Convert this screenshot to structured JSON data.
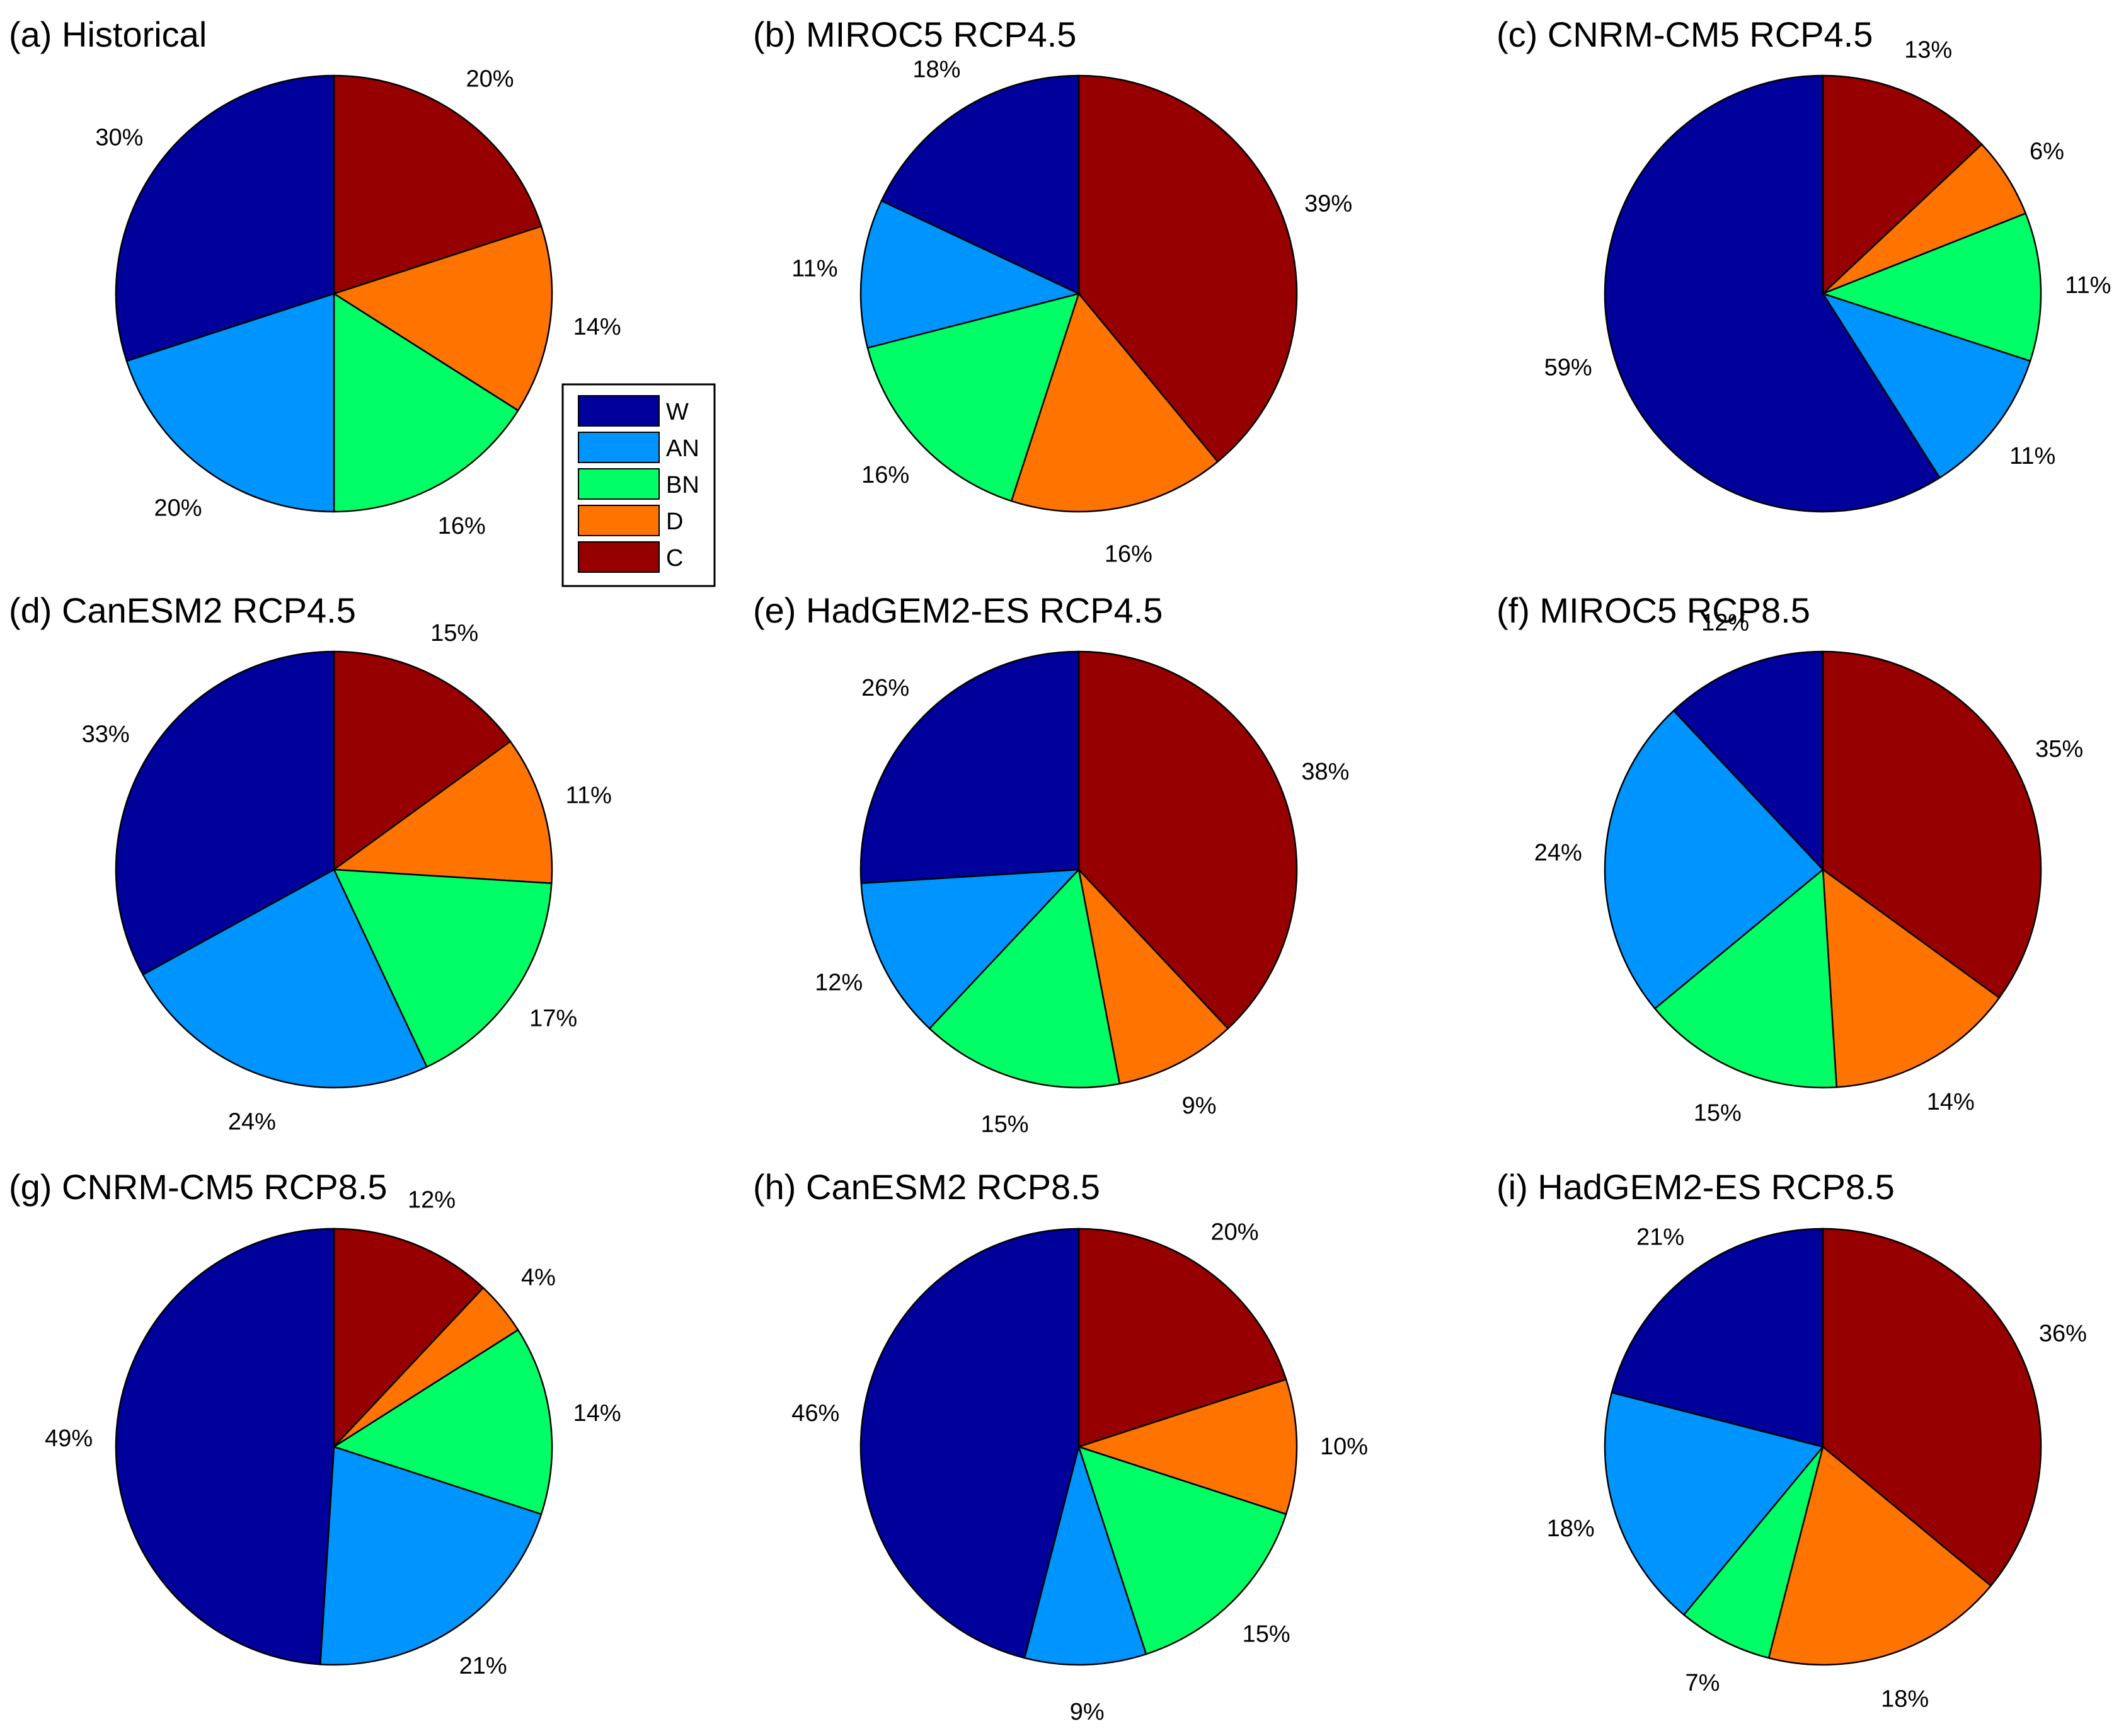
{
  "legend": {
    "items": [
      {
        "key": "W",
        "color": "#00009A"
      },
      {
        "key": "AN",
        "color": "#0094FF"
      },
      {
        "key": "BN",
        "color": "#00FF66"
      },
      {
        "key": "D",
        "color": "#FF7300"
      },
      {
        "key": "C",
        "color": "#960000"
      }
    ]
  },
  "chart_data": [
    {
      "type": "pie",
      "title": "(a) Historical",
      "categories": [
        "C",
        "D",
        "BN",
        "AN",
        "W"
      ],
      "values": [
        20,
        14,
        16,
        20,
        30
      ],
      "labels": [
        "20%",
        "14%",
        "16%",
        "20%",
        "30%"
      ]
    },
    {
      "type": "pie",
      "title": "(b) MIROC5 RCP4.5",
      "categories": [
        "C",
        "D",
        "BN",
        "AN",
        "W"
      ],
      "values": [
        39,
        16,
        16,
        11,
        18
      ],
      "labels": [
        "39%",
        "16%",
        "16%",
        "11%",
        "18%"
      ]
    },
    {
      "type": "pie",
      "title": "(c) CNRM-CM5 RCP4.5",
      "categories": [
        "C",
        "D",
        "BN",
        "AN",
        "W"
      ],
      "values": [
        13,
        6,
        11,
        11,
        59
      ],
      "labels": [
        "13%",
        "6%",
        "11%",
        "11%",
        "59%"
      ]
    },
    {
      "type": "pie",
      "title": "(d) CanESM2 RCP4.5",
      "categories": [
        "C",
        "D",
        "BN",
        "AN",
        "W"
      ],
      "values": [
        15,
        11,
        17,
        24,
        33
      ],
      "labels": [
        "15%",
        "11%",
        "17%",
        "24%",
        "33%"
      ]
    },
    {
      "type": "pie",
      "title": "(e) HadGEM2-ES RCP4.5",
      "categories": [
        "C",
        "D",
        "BN",
        "AN",
        "W"
      ],
      "values": [
        38,
        9,
        15,
        12,
        26
      ],
      "labels": [
        "38%",
        "9%",
        "15%",
        "12%",
        "26%"
      ]
    },
    {
      "type": "pie",
      "title": "(f) MIROC5 RCP8.5",
      "categories": [
        "C",
        "D",
        "BN",
        "AN",
        "W"
      ],
      "values": [
        35,
        14,
        15,
        24,
        12
      ],
      "labels": [
        "35%",
        "14%",
        "15%",
        "24%",
        "12%"
      ]
    },
    {
      "type": "pie",
      "title": "(g) CNRM-CM5 RCP8.5",
      "categories": [
        "C",
        "D",
        "BN",
        "AN",
        "W"
      ],
      "values": [
        12,
        4,
        14,
        21,
        49
      ],
      "labels": [
        "12%",
        "4%",
        "14%",
        "21%",
        "49%"
      ]
    },
    {
      "type": "pie",
      "title": "(h) CanESM2 RCP8.5",
      "categories": [
        "C",
        "D",
        "BN",
        "AN",
        "W"
      ],
      "values": [
        20,
        10,
        15,
        9,
        46
      ],
      "labels": [
        "20%",
        "10%",
        "15%",
        "9%",
        "46%"
      ]
    },
    {
      "type": "pie",
      "title": "(i) HadGEM2-ES RCP8.5",
      "categories": [
        "C",
        "D",
        "BN",
        "AN",
        "W"
      ],
      "values": [
        36,
        18,
        7,
        18,
        21
      ],
      "labels": [
        "36%",
        "18%",
        "7%",
        "18%",
        "21%"
      ]
    }
  ]
}
